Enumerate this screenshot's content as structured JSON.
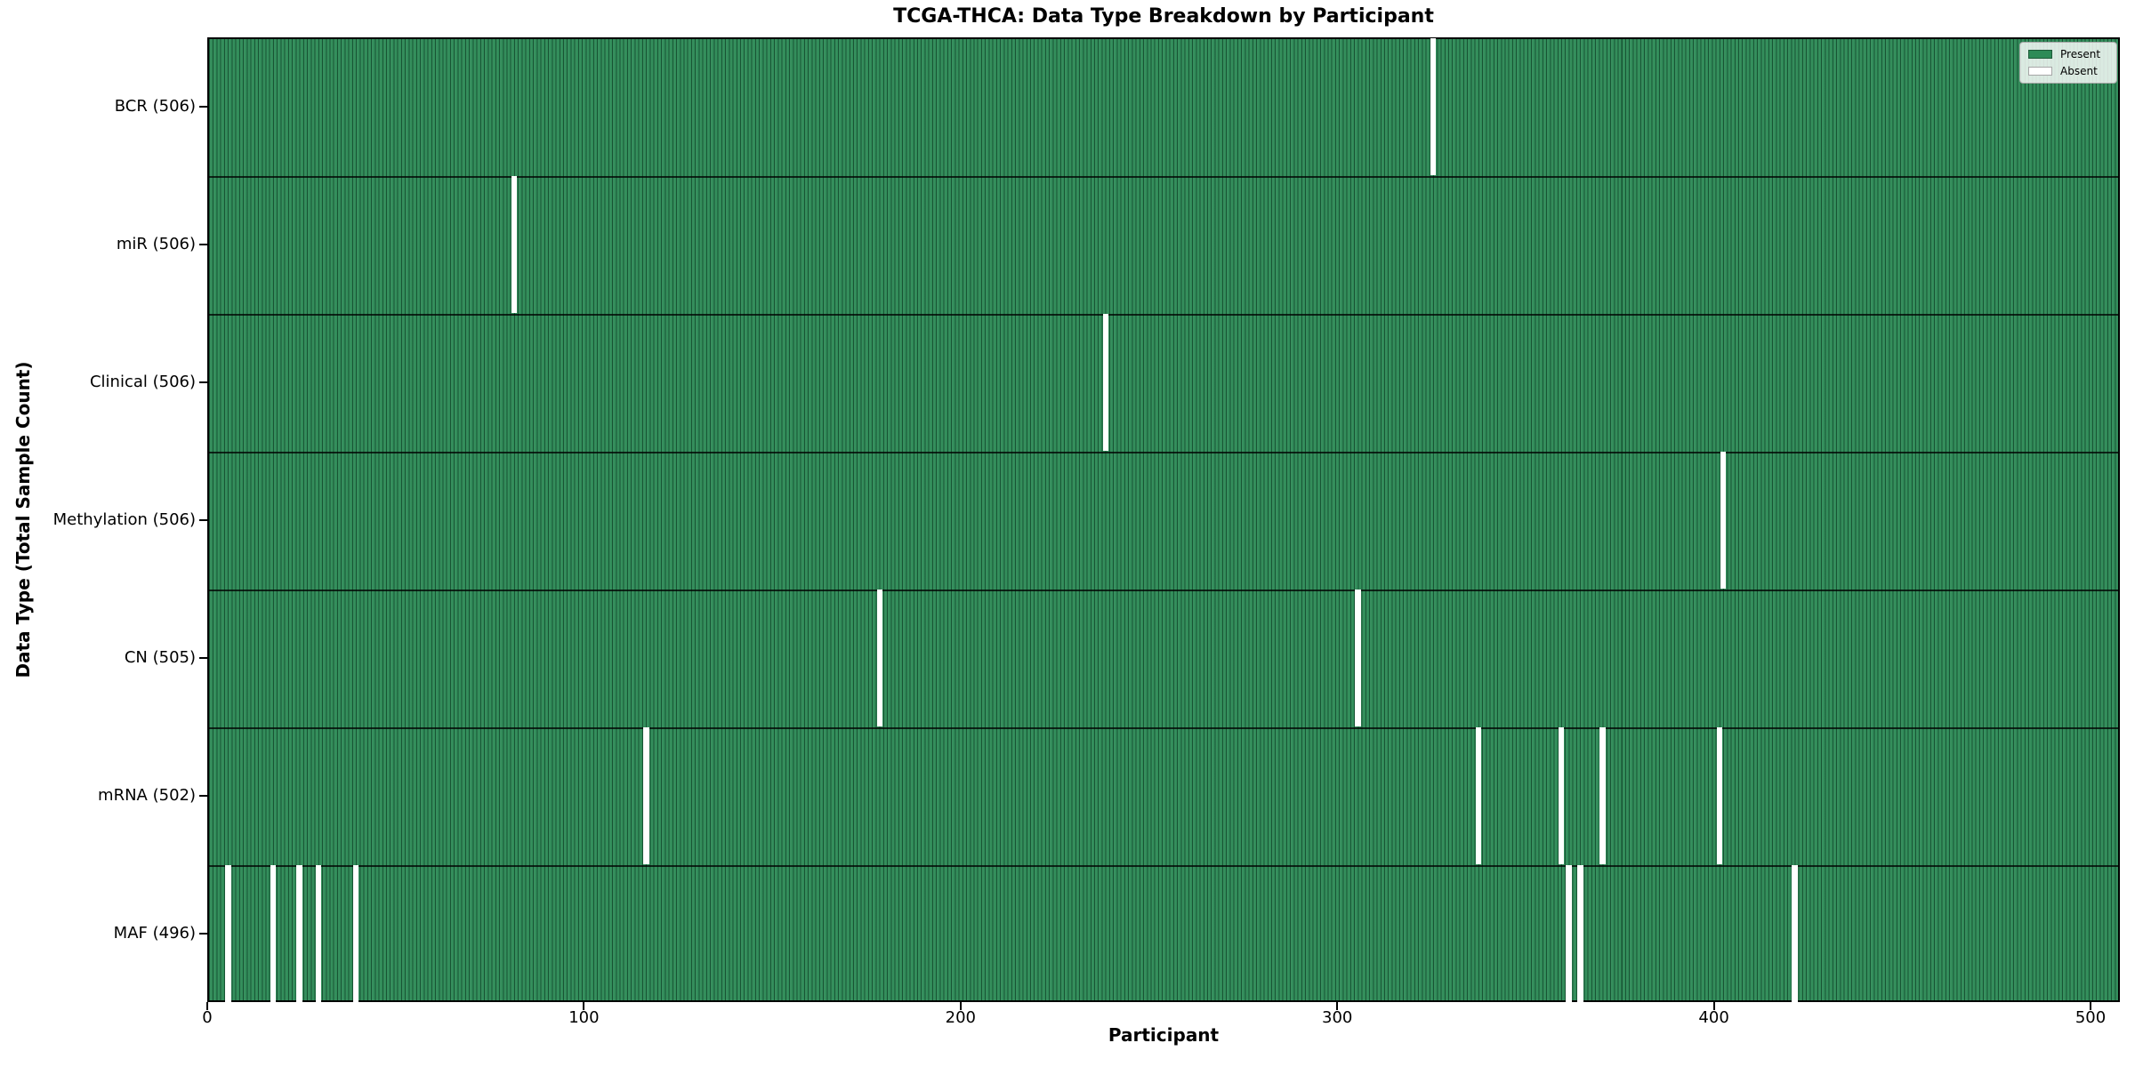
{
  "title": "TCGA-THCA: Data Type Breakdown by Participant",
  "x_axis": {
    "label": "Participant",
    "ticks": [
      0,
      100,
      200,
      300,
      400,
      500
    ]
  },
  "y_axis": {
    "label": "Data Type (Total Sample Count)"
  },
  "legend": {
    "items": [
      {
        "label": "Present",
        "color": "#2e8b57"
      },
      {
        "label": "Absent",
        "color": "#ffffff"
      }
    ]
  },
  "colors": {
    "present": "#2e8b57",
    "absent": "#ffffff",
    "bar_edge": "rgba(6,38,23,0.55)"
  },
  "chart_data": {
    "type": "heatmap",
    "title": "TCGA-THCA: Data Type Breakdown by Participant",
    "xlabel": "Participant",
    "ylabel": "Data Type (Total Sample Count)",
    "x_range": [
      0,
      506
    ],
    "x_ticks": [
      0,
      100,
      200,
      300,
      400,
      500
    ],
    "n_participants": 506,
    "grid": false,
    "legend_entries": [
      "Present",
      "Absent"
    ],
    "legend_position": "upper right",
    "rows": [
      {
        "label": "BCR",
        "total": 506,
        "tick_label": "BCR (506)",
        "absent_participants": [
          325
        ]
      },
      {
        "label": "miR",
        "total": 506,
        "tick_label": "miR (506)",
        "absent_participants": [
          81
        ]
      },
      {
        "label": "Clinical",
        "total": 506,
        "tick_label": "Clinical (506)",
        "absent_participants": [
          238
        ]
      },
      {
        "label": "Methylation",
        "total": 506,
        "tick_label": "Methylation (506)",
        "absent_participants": [
          402
        ]
      },
      {
        "label": "CN",
        "total": 505,
        "tick_label": "CN (505)",
        "absent_participants": [
          178,
          305
        ]
      },
      {
        "label": "mRNA",
        "total": 502,
        "tick_label": "mRNA (502)",
        "absent_participants": [
          116,
          337,
          359,
          370,
          401
        ]
      },
      {
        "label": "MAF",
        "total": 496,
        "tick_label": "MAF (496)",
        "absent_participants": [
          5,
          17,
          24,
          29,
          39,
          361,
          364,
          421
        ]
      }
    ]
  }
}
